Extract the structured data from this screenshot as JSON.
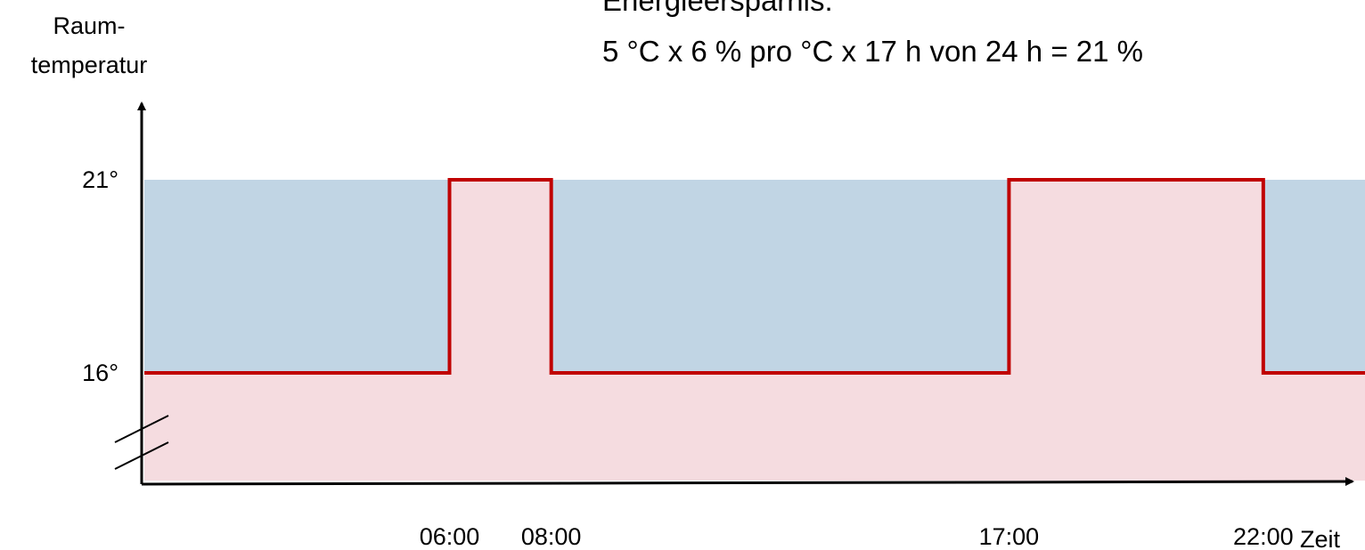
{
  "header": {
    "note_line1": "Energieersparnis:",
    "note_line2": "5 °C x 6 % pro °C x 17 h von 24 h = 21 %"
  },
  "chart_data": {
    "type": "line",
    "title": "",
    "xlabel": "Zeit",
    "ylabel_lines": [
      "Raum-",
      "temperatur"
    ],
    "x_ticks": [
      "06:00",
      "08:00",
      "17:00",
      "22:00"
    ],
    "y_ticks": [
      "21°",
      "16°"
    ],
    "y_axis_break": true,
    "xlim": [
      "00:00",
      "24:00"
    ],
    "ylim": [
      14,
      22.5
    ],
    "series": [
      {
        "kind": "step",
        "color": "#c00000",
        "x": [
          "00:00",
          "06:00",
          "06:00",
          "08:00",
          "08:00",
          "17:00",
          "17:00",
          "22:00",
          "22:00",
          "24:00"
        ],
        "y": [
          16,
          16,
          21,
          21,
          16,
          16,
          21,
          21,
          16,
          16
        ]
      }
    ],
    "bands": [
      {
        "name": "saving",
        "from": "00:00",
        "to": "06:00",
        "color": "#c1d5e4"
      },
      {
        "name": "saving",
        "from": "08:00",
        "to": "17:00",
        "color": "#c1d5e4"
      },
      {
        "name": "saving",
        "from": "22:00",
        "to": "24:00",
        "color": "#c1d5e4"
      }
    ],
    "fill_below_color": "#f5dce0",
    "grid": false,
    "legend": "none"
  }
}
